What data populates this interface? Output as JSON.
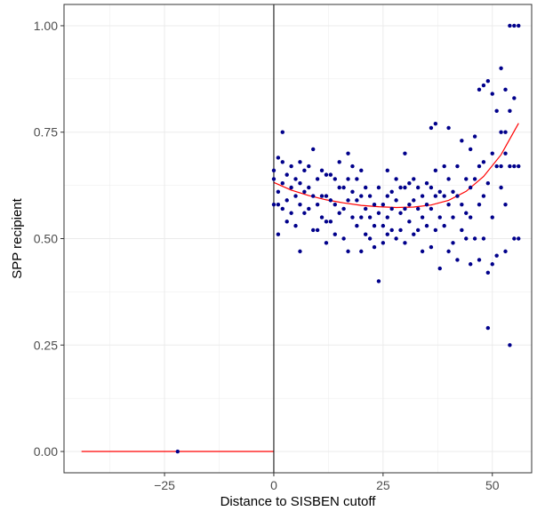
{
  "chart_data": {
    "type": "scatter",
    "title": "",
    "xlabel": "Distance to SISBEN cutoff",
    "ylabel": "SPP recipient",
    "xlim": [
      -48,
      59
    ],
    "ylim": [
      -0.05,
      1.05
    ],
    "x_ticks": [
      -25,
      0,
      25,
      50
    ],
    "x_tick_labels": [
      "−25",
      "0",
      "25",
      "50"
    ],
    "y_ticks": [
      0.0,
      0.25,
      0.5,
      0.75,
      1.0
    ],
    "y_tick_labels": [
      "0.00",
      "0.25",
      "0.50",
      "0.75",
      "1.00"
    ],
    "grid": true,
    "legend": "none",
    "cutoff_line_x": 0,
    "colors": {
      "points": "#00008B",
      "fit": "#FF0000",
      "cutoff": "#000000",
      "grid": "#EBEBEB",
      "panel_border": "#333333"
    },
    "points_left": [
      [
        -22,
        0.0
      ]
    ],
    "points_right": [
      [
        0,
        0.58
      ],
      [
        0,
        0.64
      ],
      [
        0,
        0.66
      ],
      [
        1,
        0.69
      ],
      [
        1,
        0.61
      ],
      [
        1,
        0.58
      ],
      [
        1,
        0.51
      ],
      [
        2,
        0.68
      ],
      [
        2,
        0.75
      ],
      [
        2,
        0.63
      ],
      [
        2,
        0.57
      ],
      [
        3,
        0.65
      ],
      [
        3,
        0.59
      ],
      [
        3,
        0.54
      ],
      [
        4,
        0.67
      ],
      [
        4,
        0.62
      ],
      [
        4,
        0.56
      ],
      [
        5,
        0.64
      ],
      [
        5,
        0.6
      ],
      [
        5,
        0.53
      ],
      [
        6,
        0.68
      ],
      [
        6,
        0.63
      ],
      [
        6,
        0.58
      ],
      [
        6,
        0.47
      ],
      [
        7,
        0.66
      ],
      [
        7,
        0.61
      ],
      [
        7,
        0.56
      ],
      [
        8,
        0.67
      ],
      [
        8,
        0.62
      ],
      [
        8,
        0.57
      ],
      [
        9,
        0.71
      ],
      [
        9,
        0.6
      ],
      [
        9,
        0.52
      ],
      [
        10,
        0.64
      ],
      [
        10,
        0.58
      ],
      [
        10,
        0.52
      ],
      [
        11,
        0.66
      ],
      [
        11,
        0.6
      ],
      [
        11,
        0.55
      ],
      [
        12,
        0.65
      ],
      [
        12,
        0.6
      ],
      [
        12,
        0.54
      ],
      [
        12,
        0.49
      ],
      [
        13,
        0.65
      ],
      [
        13,
        0.59
      ],
      [
        13,
        0.54
      ],
      [
        14,
        0.64
      ],
      [
        14,
        0.58
      ],
      [
        14,
        0.51
      ],
      [
        15,
        0.68
      ],
      [
        15,
        0.62
      ],
      [
        15,
        0.56
      ],
      [
        16,
        0.62
      ],
      [
        16,
        0.57
      ],
      [
        16,
        0.5
      ],
      [
        17,
        0.7
      ],
      [
        17,
        0.64
      ],
      [
        17,
        0.59
      ],
      [
        17,
        0.47
      ],
      [
        18,
        0.67
      ],
      [
        18,
        0.61
      ],
      [
        18,
        0.55
      ],
      [
        19,
        0.64
      ],
      [
        19,
        0.59
      ],
      [
        19,
        0.53
      ],
      [
        20,
        0.66
      ],
      [
        20,
        0.6
      ],
      [
        20,
        0.55
      ],
      [
        20,
        0.47
      ],
      [
        21,
        0.62
      ],
      [
        21,
        0.57
      ],
      [
        21,
        0.51
      ],
      [
        22,
        0.6
      ],
      [
        22,
        0.55
      ],
      [
        22,
        0.5
      ],
      [
        23,
        0.58
      ],
      [
        23,
        0.53
      ],
      [
        23,
        0.48
      ],
      [
        24,
        0.62
      ],
      [
        24,
        0.56
      ],
      [
        24,
        0.4
      ],
      [
        25,
        0.58
      ],
      [
        25,
        0.53
      ],
      [
        25,
        0.49
      ],
      [
        26,
        0.66
      ],
      [
        26,
        0.6
      ],
      [
        26,
        0.55
      ],
      [
        26,
        0.51
      ],
      [
        27,
        0.61
      ],
      [
        27,
        0.57
      ],
      [
        27,
        0.52
      ],
      [
        28,
        0.64
      ],
      [
        28,
        0.59
      ],
      [
        28,
        0.5
      ],
      [
        29,
        0.62
      ],
      [
        29,
        0.56
      ],
      [
        29,
        0.52
      ],
      [
        30,
        0.7
      ],
      [
        30,
        0.62
      ],
      [
        30,
        0.57
      ],
      [
        30,
        0.49
      ],
      [
        31,
        0.63
      ],
      [
        31,
        0.58
      ],
      [
        31,
        0.54
      ],
      [
        32,
        0.64
      ],
      [
        32,
        0.59
      ],
      [
        32,
        0.51
      ],
      [
        33,
        0.62
      ],
      [
        33,
        0.57
      ],
      [
        33,
        0.52
      ],
      [
        34,
        0.6
      ],
      [
        34,
        0.55
      ],
      [
        34,
        0.47
      ],
      [
        35,
        0.63
      ],
      [
        35,
        0.58
      ],
      [
        35,
        0.53
      ],
      [
        36,
        0.76
      ],
      [
        36,
        0.62
      ],
      [
        36,
        0.57
      ],
      [
        36,
        0.48
      ],
      [
        37,
        0.77
      ],
      [
        37,
        0.66
      ],
      [
        37,
        0.6
      ],
      [
        37,
        0.52
      ],
      [
        38,
        0.61
      ],
      [
        38,
        0.55
      ],
      [
        38,
        0.43
      ],
      [
        39,
        0.67
      ],
      [
        39,
        0.6
      ],
      [
        39,
        0.53
      ],
      [
        40,
        0.76
      ],
      [
        40,
        0.64
      ],
      [
        40,
        0.58
      ],
      [
        40,
        0.47
      ],
      [
        41,
        0.61
      ],
      [
        41,
        0.55
      ],
      [
        41,
        0.49
      ],
      [
        42,
        0.67
      ],
      [
        42,
        0.6
      ],
      [
        42,
        0.45
      ],
      [
        43,
        0.73
      ],
      [
        43,
        0.58
      ],
      [
        43,
        0.52
      ],
      [
        44,
        0.64
      ],
      [
        44,
        0.56
      ],
      [
        44,
        0.5
      ],
      [
        45,
        0.71
      ],
      [
        45,
        0.62
      ],
      [
        45,
        0.55
      ],
      [
        45,
        0.44
      ],
      [
        46,
        0.74
      ],
      [
        46,
        0.64
      ],
      [
        46,
        0.5
      ],
      [
        47,
        0.85
      ],
      [
        47,
        0.67
      ],
      [
        47,
        0.58
      ],
      [
        47,
        0.45
      ],
      [
        48,
        0.86
      ],
      [
        48,
        0.68
      ],
      [
        48,
        0.6
      ],
      [
        48,
        0.5
      ],
      [
        49,
        0.87
      ],
      [
        49,
        0.63
      ],
      [
        49,
        0.42
      ],
      [
        49,
        0.29
      ],
      [
        50,
        0.84
      ],
      [
        50,
        0.7
      ],
      [
        50,
        0.55
      ],
      [
        50,
        0.44
      ],
      [
        51,
        0.8
      ],
      [
        51,
        0.67
      ],
      [
        51,
        0.46
      ],
      [
        52,
        0.9
      ],
      [
        52,
        0.75
      ],
      [
        52,
        0.67
      ],
      [
        52,
        0.62
      ],
      [
        53,
        0.85
      ],
      [
        53,
        0.75
      ],
      [
        53,
        0.7
      ],
      [
        53,
        0.58
      ],
      [
        53,
        0.47
      ],
      [
        54,
        1.0
      ],
      [
        54,
        0.8
      ],
      [
        54,
        0.67
      ],
      [
        54,
        0.25
      ],
      [
        55,
        1.0
      ],
      [
        55,
        0.83
      ],
      [
        55,
        0.67
      ],
      [
        55,
        0.5
      ],
      [
        56,
        1.0
      ],
      [
        56,
        0.67
      ],
      [
        56,
        0.5
      ]
    ],
    "fit_left": [
      [
        -44,
        0.0
      ],
      [
        0,
        0.0
      ]
    ],
    "fit_right": [
      [
        0,
        0.632
      ],
      [
        4,
        0.614
      ],
      [
        8,
        0.601
      ],
      [
        12,
        0.591
      ],
      [
        16,
        0.584
      ],
      [
        20,
        0.578
      ],
      [
        24,
        0.575
      ],
      [
        28,
        0.573
      ],
      [
        32,
        0.574
      ],
      [
        36,
        0.579
      ],
      [
        40,
        0.59
      ],
      [
        44,
        0.611
      ],
      [
        48,
        0.646
      ],
      [
        52,
        0.697
      ],
      [
        56,
        0.771
      ]
    ]
  }
}
